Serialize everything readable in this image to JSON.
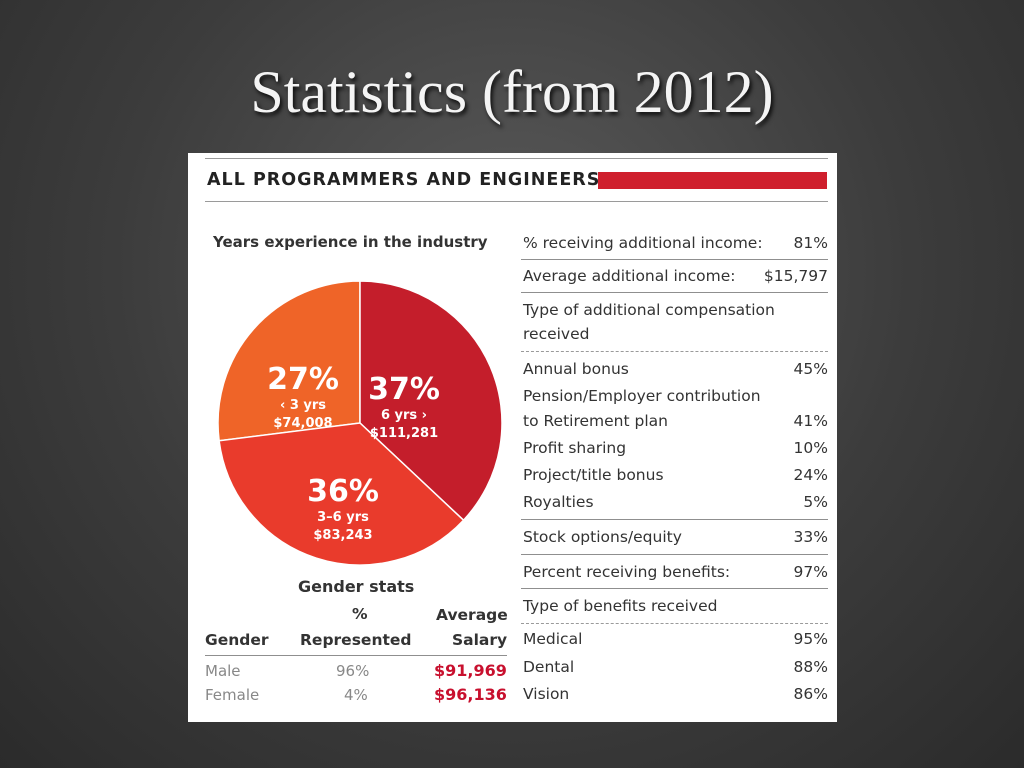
{
  "slide": {
    "title": "Statistics (from 2012)"
  },
  "card": {
    "header": "ALL PROGRAMMERS AND ENGINEERS",
    "accent_color": "#cf1f2d",
    "pie": {
      "title": "Years experience in the industry",
      "slices": [
        {
          "pct": "27%",
          "label": "‹ 3 yrs",
          "salary": "$74,008",
          "value": 27,
          "color": "#ef6428"
        },
        {
          "pct": "37%",
          "label": "6 yrs ›",
          "salary": "$111,281",
          "value": 37,
          "color": "#c41e2b"
        },
        {
          "pct": "36%",
          "label": "3–6 yrs",
          "salary": "$83,243",
          "value": 36,
          "color": "#e93b2c"
        }
      ]
    },
    "gender": {
      "title": "Gender stats",
      "headers": {
        "gender": "Gender",
        "pct_top": "%",
        "pct_bottom": "Represented",
        "avg_top": "Average",
        "avg_bottom": "Salary"
      },
      "rows": [
        {
          "gender": "Male",
          "pct": "96%",
          "salary": "$91,969"
        },
        {
          "gender": "Female",
          "pct": "4%",
          "salary": "$96,136"
        }
      ]
    },
    "stats": {
      "receiving_additional": {
        "label": "% receiving additional  income:",
        "value": "81%"
      },
      "average_additional": {
        "label": "Average additional income:",
        "value": "$15,797"
      },
      "compensation_heading_1": "Type of additional compensation",
      "compensation_heading_2": "received",
      "compensation": [
        {
          "label": "Annual bonus",
          "value": "45%"
        },
        {
          "label": "Pension/Employer contribution",
          "value": ""
        },
        {
          "label": "to Retirement plan",
          "value": "41%"
        },
        {
          "label": "Profit sharing",
          "value": "10%"
        },
        {
          "label": "Project/title bonus",
          "value": "24%"
        },
        {
          "label": "Royalties",
          "value": "5%"
        }
      ],
      "stock": {
        "label": "Stock options/equity",
        "value": "33%"
      },
      "benefits": {
        "label": "Percent receiving benefits:",
        "value": "97%"
      },
      "benefits_heading": "Type of benefits received",
      "benefit_types": [
        {
          "label": "Medical",
          "value": "95%"
        },
        {
          "label": "Dental",
          "value": "88%"
        },
        {
          "label": "Vision",
          "value": "86%"
        }
      ]
    }
  }
}
